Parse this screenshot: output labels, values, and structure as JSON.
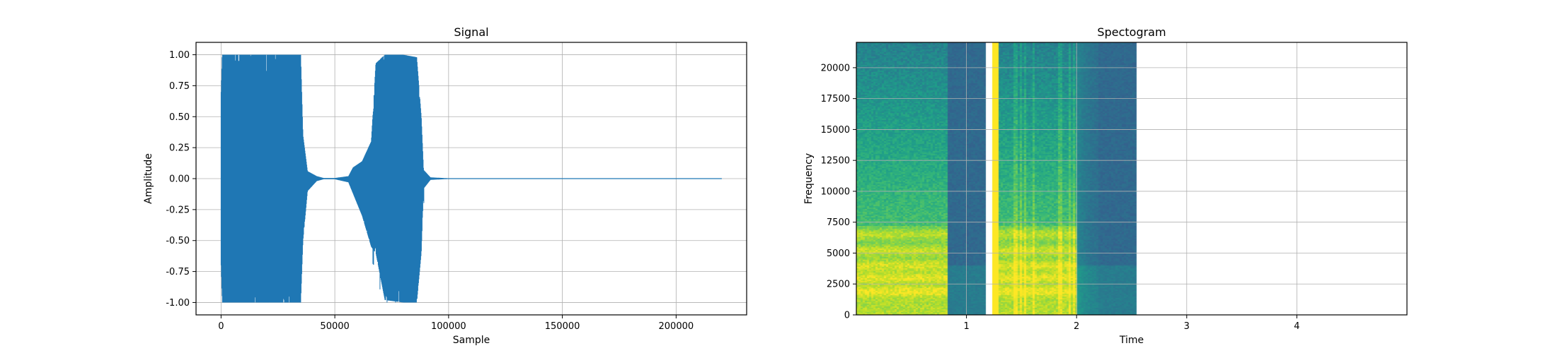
{
  "chart_data": [
    {
      "type": "line",
      "title": "Signal",
      "xlabel": "Sample",
      "ylabel": "Amplitude",
      "xlim": [
        -11000,
        231000
      ],
      "ylim": [
        -1.1,
        1.1
      ],
      "grid": true,
      "color": "#1f77b4",
      "xticks": [
        0,
        50000,
        100000,
        150000,
        200000
      ],
      "yticks": [
        -1.0,
        -0.75,
        -0.5,
        -0.25,
        0.0,
        0.25,
        0.5,
        0.75,
        1.0
      ],
      "series": [
        {
          "kind": "envelope",
          "x": [
            0,
            500,
            35000,
            36000,
            38000,
            42000,
            45000,
            50000,
            56000,
            58000,
            62000,
            66000,
            68000,
            72000,
            80000,
            86000,
            88000,
            89000,
            92000,
            100000,
            220000
          ],
          "upper": [
            0.7,
            1.0,
            1.0,
            0.35,
            0.06,
            0.02,
            0.005,
            0.005,
            0.02,
            0.09,
            0.14,
            0.3,
            0.93,
            1.0,
            1.0,
            0.98,
            0.5,
            0.07,
            0.01,
            0.003,
            0.002
          ],
          "lower": [
            -0.7,
            -1.0,
            -1.0,
            -0.5,
            -0.1,
            -0.02,
            -0.005,
            -0.005,
            -0.03,
            -0.12,
            -0.3,
            -0.55,
            -0.6,
            -0.98,
            -1.0,
            -1.0,
            -0.6,
            -0.08,
            -0.01,
            -0.003,
            -0.002
          ]
        }
      ]
    },
    {
      "type": "heatmap",
      "title": "Spectogram",
      "xlabel": "Time",
      "ylabel": "Frequency",
      "xlim": [
        0.0,
        5.0
      ],
      "ylim": [
        0,
        22050
      ],
      "grid": true,
      "colormap": "viridis",
      "xticks": [
        1,
        2,
        3,
        4
      ],
      "yticks": [
        0,
        2500,
        5000,
        7500,
        10000,
        12500,
        15000,
        17500,
        20000
      ],
      "segments": [
        {
          "t_start": 0.0,
          "t_end": 1.18,
          "voiced_end": 0.82
        },
        {
          "t_start": 1.24,
          "t_end": 2.54,
          "voiced_start": 1.28,
          "voiced_end": 2.0
        }
      ],
      "formant_bands_hz": [
        1900,
        3000,
        4000,
        5200,
        6500
      ]
    }
  ]
}
